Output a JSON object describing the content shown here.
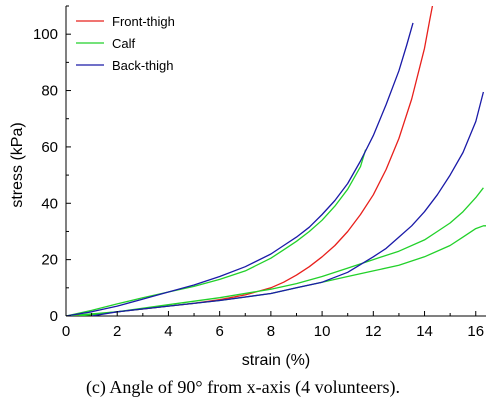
{
  "caption": "(c)  Angle of 90° from x-axis (4 volunteers).",
  "chart_data": {
    "type": "line",
    "xlabel": "strain (%)",
    "ylabel": "stress (kPa)",
    "xlim": [
      0,
      16.4
    ],
    "ylim": [
      0,
      110
    ],
    "xticks": [
      0,
      2,
      4,
      6,
      8,
      10,
      12,
      14,
      16
    ],
    "yticks": [
      0,
      20,
      40,
      60,
      80,
      100
    ],
    "legend_position": "top-left",
    "colors": {
      "Front-thigh": "#e8201c",
      "Calf": "#22d12a",
      "Back-thigh": "#1a1aa8"
    },
    "series": [
      {
        "name": "Front-thigh",
        "curves": [
          [
            [
              0,
              0
            ],
            [
              1,
              0.5
            ],
            [
              2,
              1.5
            ],
            [
              3,
              2.5
            ],
            [
              4,
              3.5
            ],
            [
              5,
              4.5
            ],
            [
              6,
              5.8
            ],
            [
              7,
              7.5
            ],
            [
              8,
              10
            ],
            [
              8.5,
              12
            ],
            [
              9,
              14.5
            ],
            [
              9.5,
              17.5
            ],
            [
              10,
              21
            ],
            [
              10.5,
              25
            ],
            [
              11,
              30
            ],
            [
              11.5,
              36
            ],
            [
              12,
              43
            ],
            [
              12.5,
              52
            ],
            [
              13,
              63
            ],
            [
              13.5,
              77
            ],
            [
              14,
              95
            ],
            [
              14.2,
              105
            ],
            [
              14.35,
              112
            ]
          ]
        ]
      },
      {
        "name": "Calf",
        "curves": [
          [
            [
              0,
              0
            ],
            [
              1,
              2
            ],
            [
              2,
              4.3
            ],
            [
              3,
              6.5
            ],
            [
              4,
              8.5
            ],
            [
              5,
              10.5
            ],
            [
              6,
              13
            ],
            [
              7,
              16
            ],
            [
              8,
              20.5
            ],
            [
              8.5,
              23.5
            ],
            [
              9,
              26.5
            ],
            [
              9.5,
              30
            ],
            [
              10,
              34
            ],
            [
              10.5,
              39
            ],
            [
              11,
              45
            ],
            [
              11.5,
              53
            ],
            [
              11.7,
              59
            ]
          ],
          [
            [
              0,
              0
            ],
            [
              2,
              1.5
            ],
            [
              4,
              3.5
            ],
            [
              6,
              5.5
            ],
            [
              8,
              8
            ],
            [
              9,
              10
            ],
            [
              10,
              12
            ],
            [
              11,
              14
            ],
            [
              12,
              16
            ],
            [
              13,
              18
            ],
            [
              14,
              21
            ],
            [
              15,
              25
            ],
            [
              15.5,
              28
            ],
            [
              16,
              31
            ],
            [
              16.3,
              32
            ],
            [
              16.5,
              32
            ]
          ],
          [
            [
              0.5,
              0
            ],
            [
              2,
              1.5
            ],
            [
              4,
              4
            ],
            [
              6,
              6.5
            ],
            [
              8,
              9.5
            ],
            [
              9,
              11.5
            ],
            [
              10,
              14
            ],
            [
              11,
              17
            ],
            [
              12,
              20
            ],
            [
              13,
              23
            ],
            [
              14,
              27
            ],
            [
              14.5,
              30
            ],
            [
              15,
              33
            ],
            [
              15.5,
              37
            ],
            [
              16,
              42
            ],
            [
              16.3,
              45.5
            ]
          ]
        ]
      },
      {
        "name": "Back-thigh",
        "curves": [
          [
            [
              0,
              0
            ],
            [
              1,
              1.5
            ],
            [
              2,
              3.5
            ],
            [
              3,
              6
            ],
            [
              4,
              8.5
            ],
            [
              5,
              11
            ],
            [
              6,
              14
            ],
            [
              7,
              17.5
            ],
            [
              8,
              22
            ],
            [
              8.5,
              25
            ],
            [
              9,
              28
            ],
            [
              9.5,
              31.5
            ],
            [
              10,
              36
            ],
            [
              10.5,
              41
            ],
            [
              11,
              47
            ],
            [
              11.5,
              55
            ],
            [
              12,
              64
            ],
            [
              12.5,
              75
            ],
            [
              13,
              87
            ],
            [
              13.3,
              96
            ],
            [
              13.55,
              104
            ]
          ],
          [
            [
              1,
              0
            ],
            [
              2,
              1.5
            ],
            [
              4,
              3.5
            ],
            [
              6,
              5.5
            ],
            [
              8,
              8
            ],
            [
              9,
              10
            ],
            [
              10,
              12
            ],
            [
              11,
              15.5
            ],
            [
              12,
              21
            ],
            [
              12.5,
              24
            ],
            [
              13,
              28
            ],
            [
              13.5,
              32
            ],
            [
              14,
              37
            ],
            [
              14.5,
              43
            ],
            [
              15,
              50
            ],
            [
              15.5,
              58
            ],
            [
              16,
              69
            ],
            [
              16.3,
              79.5
            ]
          ]
        ]
      }
    ]
  }
}
